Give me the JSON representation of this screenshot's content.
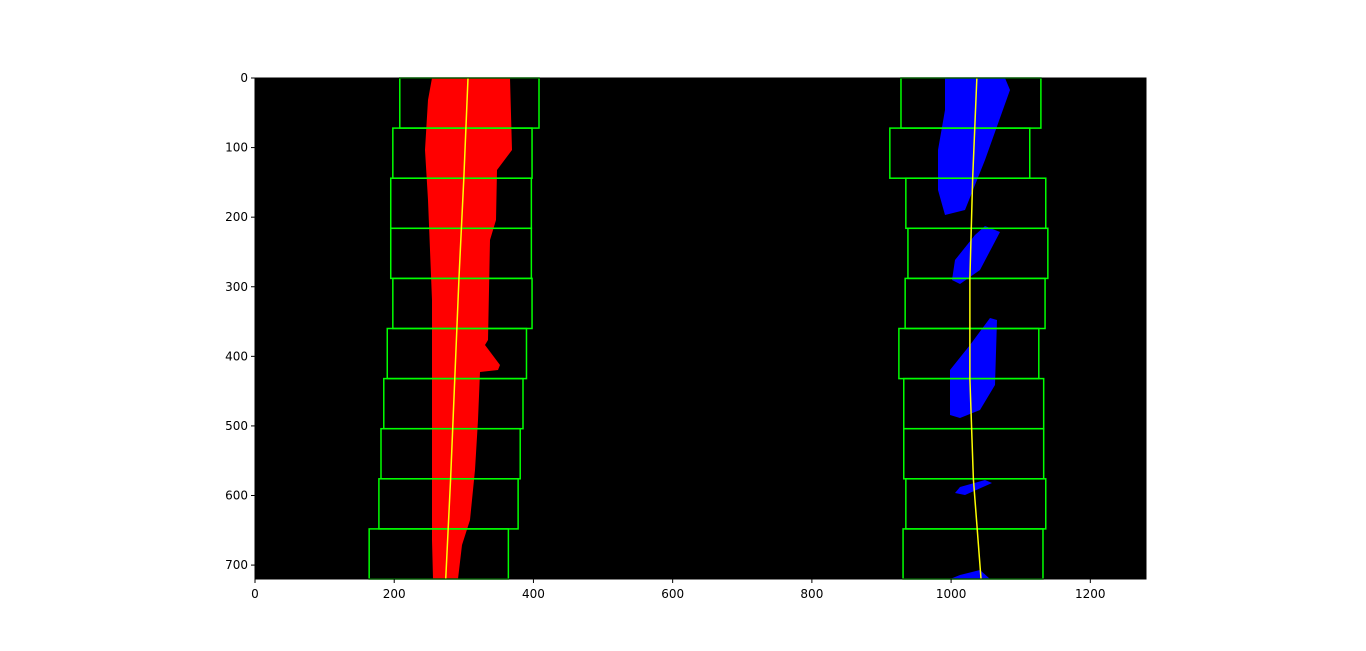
{
  "chart_data": {
    "type": "image",
    "xlim": [
      0,
      1280
    ],
    "ylim": [
      720,
      0
    ],
    "xticks": [
      0,
      200,
      400,
      600,
      800,
      1000,
      1200
    ],
    "yticks": [
      0,
      100,
      200,
      300,
      400,
      500,
      600,
      700
    ],
    "background": "#000000",
    "window_color": "#00ff00",
    "fit_color": "#ffff00",
    "windows": [
      {
        "x": [
          208,
          408
        ],
        "y": [
          0,
          72
        ]
      },
      {
        "x": [
          198,
          398
        ],
        "y": [
          72,
          144
        ]
      },
      {
        "x": [
          195,
          397
        ],
        "y": [
          144,
          216
        ]
      },
      {
        "x": [
          195,
          397
        ],
        "y": [
          216,
          288
        ]
      },
      {
        "x": [
          198,
          398
        ],
        "y": [
          288,
          360
        ]
      },
      {
        "x": [
          190,
          390
        ],
        "y": [
          360,
          432
        ]
      },
      {
        "x": [
          185,
          385
        ],
        "y": [
          432,
          504
        ]
      },
      {
        "x": [
          181,
          381
        ],
        "y": [
          504,
          576
        ]
      },
      {
        "x": [
          178,
          378
        ],
        "y": [
          576,
          648
        ]
      },
      {
        "x": [
          164,
          364
        ],
        "y": [
          648,
          720
        ]
      },
      {
        "x": [
          928,
          1129
        ],
        "y": [
          0,
          72
        ]
      },
      {
        "x": [
          912,
          1113
        ],
        "y": [
          72,
          144
        ]
      },
      {
        "x": [
          935,
          1136
        ],
        "y": [
          144,
          216
        ]
      },
      {
        "x": [
          938,
          1139
        ],
        "y": [
          216,
          288
        ]
      },
      {
        "x": [
          934,
          1135
        ],
        "y": [
          288,
          360
        ]
      },
      {
        "x": [
          925,
          1126
        ],
        "y": [
          360,
          432
        ]
      },
      {
        "x": [
          932,
          1133
        ],
        "y": [
          432,
          504
        ]
      },
      {
        "x": [
          932,
          1133
        ],
        "y": [
          504,
          576
        ]
      },
      {
        "x": [
          935,
          1136
        ],
        "y": [
          576,
          648
        ]
      },
      {
        "x": [
          931,
          1132
        ],
        "y": [
          648,
          720
        ]
      }
    ],
    "fits": [
      {
        "x": [
          306,
          300,
          293,
          287,
          281,
          274
        ],
        "y": [
          0,
          144,
          288,
          432,
          576,
          720
        ]
      },
      {
        "x": [
          1037,
          1031,
          1027,
          1027,
          1032,
          1043
        ],
        "y": [
          0,
          144,
          288,
          432,
          576,
          720
        ]
      }
    ]
  }
}
